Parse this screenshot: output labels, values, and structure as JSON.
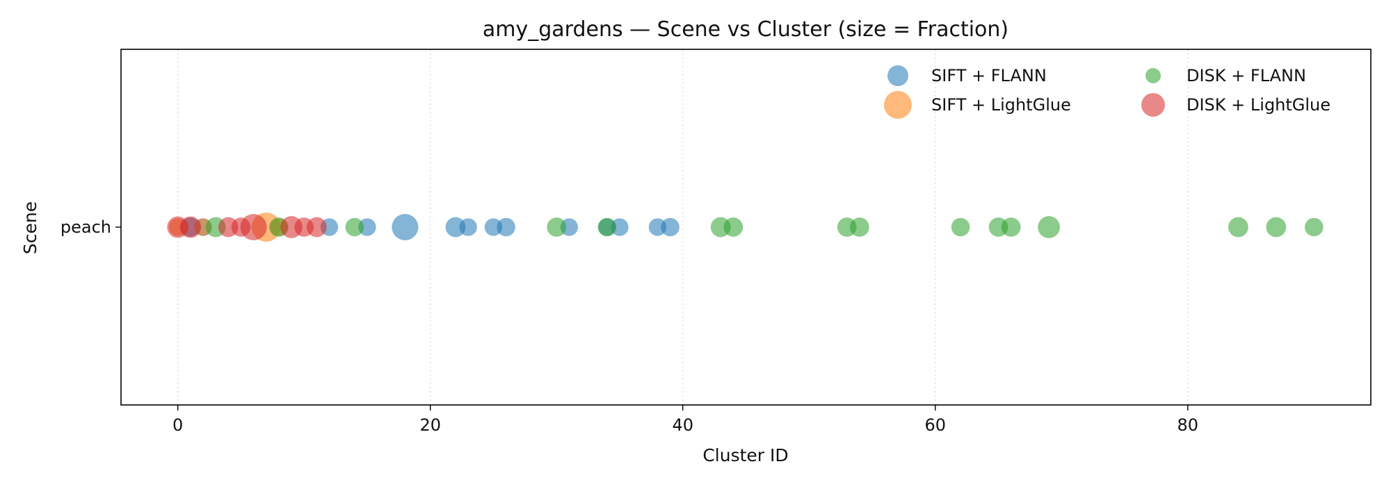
{
  "chart_data": {
    "type": "scatter",
    "title": "amy_gardens — Scene vs Cluster (size = Fraction)",
    "xlabel": "Cluster ID",
    "ylabel": "Scene",
    "xlim": [
      -4.5,
      94.5
    ],
    "xticks": [
      0,
      20,
      40,
      60,
      80
    ],
    "y_categories": [
      "peach"
    ],
    "grid": "vertical dotted",
    "legend_position": "top-right",
    "series": [
      {
        "name": "SIFT + FLANN",
        "color": "#1f77b4",
        "points": [
          {
            "x": 1,
            "size": 0.4
          },
          {
            "x": 2,
            "size": 0.3
          },
          {
            "x": 12,
            "size": 0.3
          },
          {
            "x": 15,
            "size": 0.3
          },
          {
            "x": 18,
            "size": 1.0
          },
          {
            "x": 22,
            "size": 0.45
          },
          {
            "x": 23,
            "size": 0.3
          },
          {
            "x": 25,
            "size": 0.3
          },
          {
            "x": 26,
            "size": 0.35
          },
          {
            "x": 31,
            "size": 0.3
          },
          {
            "x": 34,
            "size": 0.3
          },
          {
            "x": 35,
            "size": 0.3
          },
          {
            "x": 38,
            "size": 0.3
          },
          {
            "x": 39,
            "size": 0.35
          }
        ]
      },
      {
        "name": "SIFT + LightGlue",
        "color": "#ff7f0e",
        "points": [
          {
            "x": 0,
            "size": 0.3
          },
          {
            "x": 2,
            "size": 0.3
          },
          {
            "x": 7,
            "size": 1.3
          },
          {
            "x": 8,
            "size": 0.3
          }
        ]
      },
      {
        "name": "DISK + FLANN",
        "color": "#2ca02c",
        "points": [
          {
            "x": 3,
            "size": 0.45
          },
          {
            "x": 8,
            "size": 0.4
          },
          {
            "x": 14,
            "size": 0.35
          },
          {
            "x": 30,
            "size": 0.4
          },
          {
            "x": 34,
            "size": 0.35
          },
          {
            "x": 43,
            "size": 0.45
          },
          {
            "x": 44,
            "size": 0.4
          },
          {
            "x": 53,
            "size": 0.4
          },
          {
            "x": 54,
            "size": 0.4
          },
          {
            "x": 62,
            "size": 0.35
          },
          {
            "x": 65,
            "size": 0.4
          },
          {
            "x": 66,
            "size": 0.4
          },
          {
            "x": 69,
            "size": 0.6
          },
          {
            "x": 84,
            "size": 0.45
          },
          {
            "x": 87,
            "size": 0.45
          },
          {
            "x": 90,
            "size": 0.35
          }
        ]
      },
      {
        "name": "DISK + LightGlue",
        "color": "#d62728",
        "points": [
          {
            "x": 0,
            "size": 0.55
          },
          {
            "x": 1,
            "size": 0.55
          },
          {
            "x": 4,
            "size": 0.45
          },
          {
            "x": 5,
            "size": 0.4
          },
          {
            "x": 6,
            "size": 1.0
          },
          {
            "x": 9,
            "size": 0.6
          },
          {
            "x": 10,
            "size": 0.4
          },
          {
            "x": 11,
            "size": 0.45
          }
        ]
      }
    ]
  }
}
